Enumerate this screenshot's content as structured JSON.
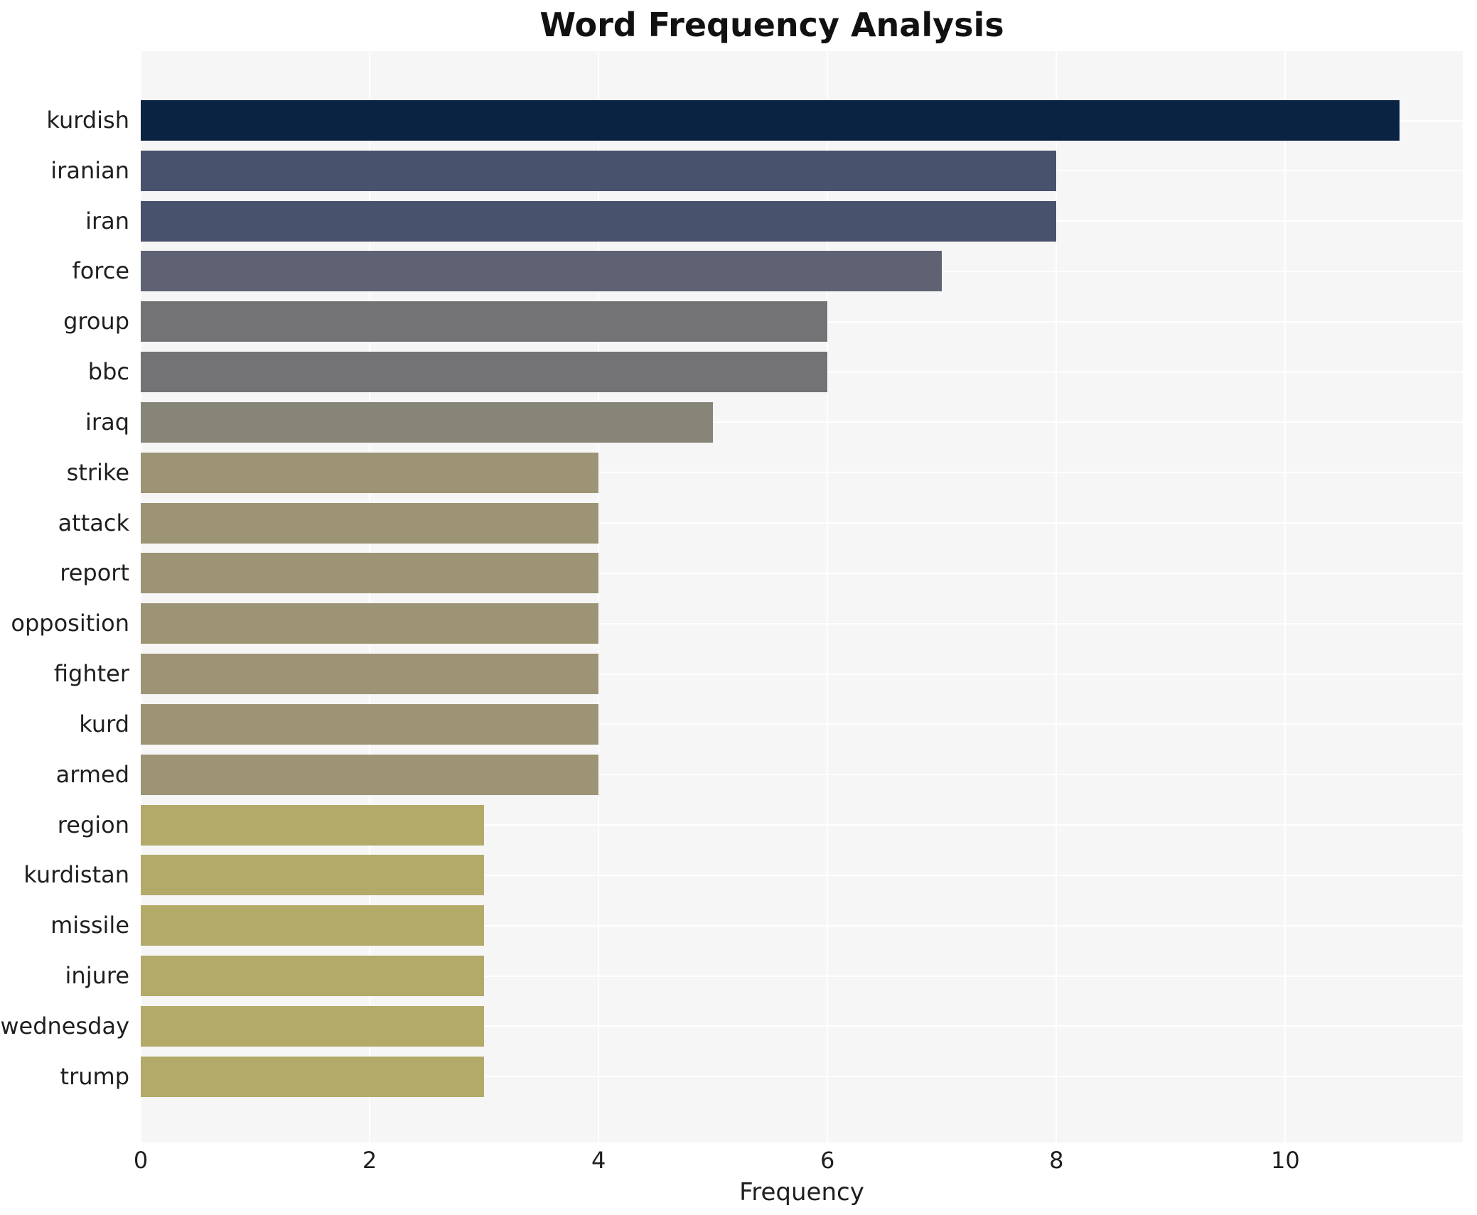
{
  "chart_data": {
    "type": "bar",
    "orientation": "horizontal",
    "title": "Word Frequency Analysis",
    "xlabel": "Frequency",
    "ylabel": "",
    "categories": [
      "kurdish",
      "iranian",
      "iran",
      "force",
      "group",
      "bbc",
      "iraq",
      "strike",
      "attack",
      "report",
      "opposition",
      "fighter",
      "kurd",
      "armed",
      "region",
      "kurdistan",
      "missile",
      "injure",
      "wednesday",
      "trump"
    ],
    "values": [
      11,
      8,
      8,
      7,
      6,
      6,
      5,
      4,
      4,
      4,
      4,
      4,
      4,
      4,
      3,
      3,
      3,
      3,
      3,
      3
    ],
    "bar_colors": [
      "#0a2342",
      "#49526c",
      "#49526c",
      "#5f6272",
      "#737274",
      "#737274",
      "#878577",
      "#9c9474",
      "#9c9474",
      "#9c9474",
      "#9c9474",
      "#9c9474",
      "#9c9474",
      "#9c9474",
      "#b3a968",
      "#b3a968",
      "#b3a968",
      "#b3a968",
      "#b3a968",
      "#b3a968"
    ],
    "xticks": [
      0,
      2,
      4,
      6,
      8,
      10
    ],
    "xlim": [
      0,
      11.55
    ],
    "grid": true,
    "grid_color": "#ffffff",
    "plot_background": "#f6f6f7",
    "legend_position": "none"
  }
}
